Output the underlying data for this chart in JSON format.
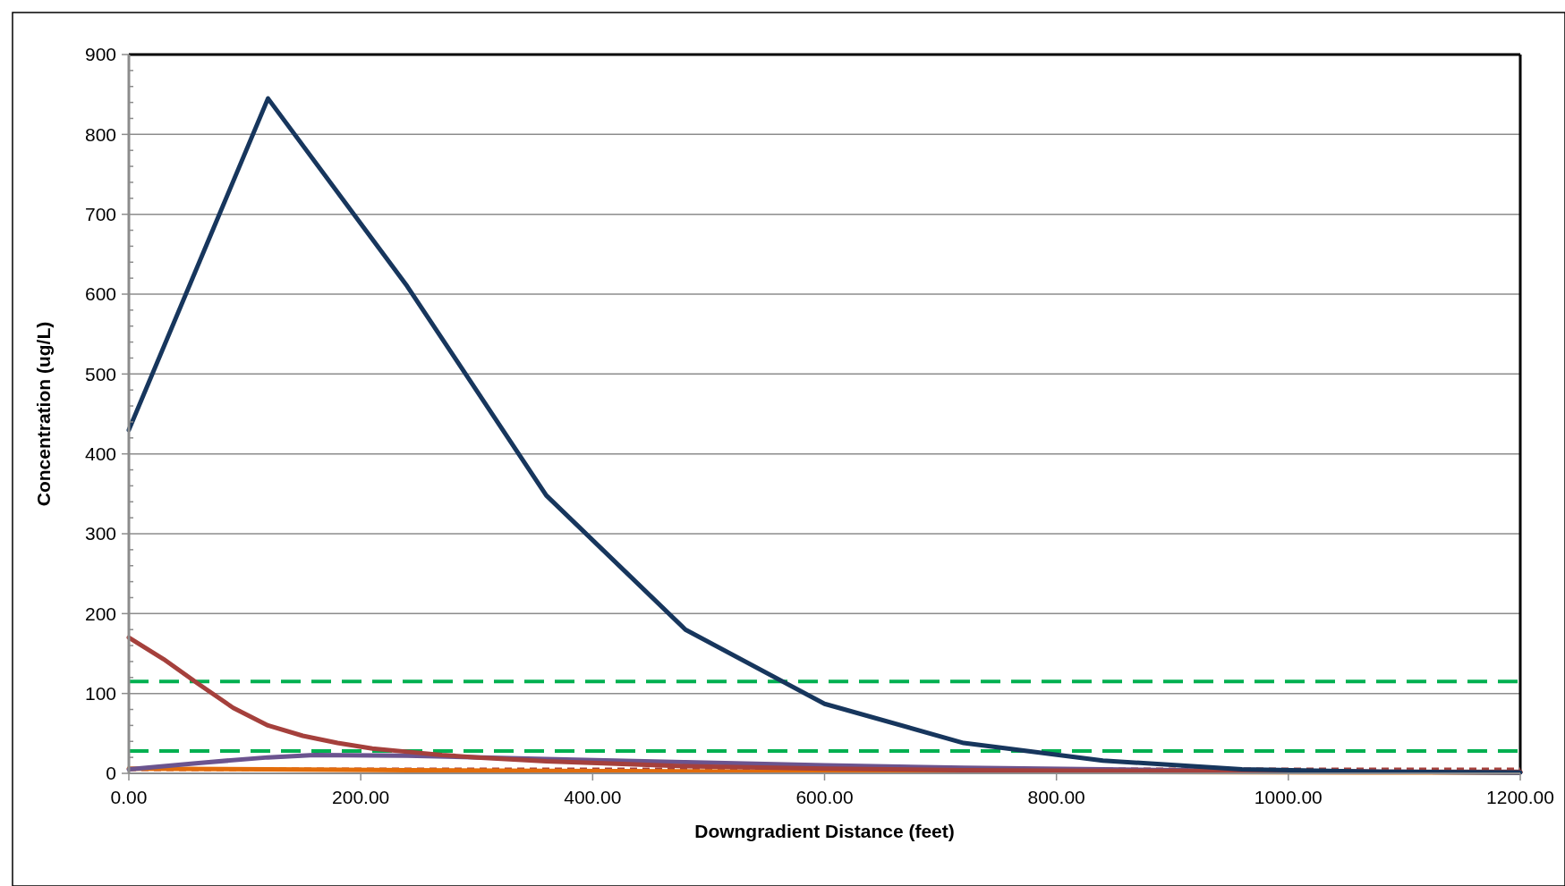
{
  "chart_data": {
    "type": "line",
    "xlabel": "Downgradient Distance (feet)",
    "ylabel": "Concentration (ug/L)",
    "xlim": [
      0,
      1200
    ],
    "ylim": [
      0,
      900
    ],
    "xticks": [
      {
        "value": 0,
        "label": "0.00"
      },
      {
        "value": 200,
        "label": "200.00"
      },
      {
        "value": 400,
        "label": "400.00"
      },
      {
        "value": 600,
        "label": "600.00"
      },
      {
        "value": 800,
        "label": "800.00"
      },
      {
        "value": 1000,
        "label": "1000.00"
      },
      {
        "value": 1200,
        "label": "1200.00"
      }
    ],
    "yticks": [
      0,
      {
        "value": 20,
        "label": null
      },
      {
        "value": 40,
        "label": null
      },
      {
        "value": 60,
        "label": null
      },
      {
        "value": 80,
        "label": null
      },
      100,
      {
        "value": 120,
        "label": null
      },
      {
        "value": 140,
        "label": null
      },
      {
        "value": 160,
        "label": null
      },
      {
        "value": 180,
        "label": null
      },
      200,
      {
        "value": 220,
        "label": null
      },
      {
        "value": 240,
        "label": null
      },
      {
        "value": 260,
        "label": null
      },
      {
        "value": 280,
        "label": null
      },
      300,
      {
        "value": 320,
        "label": null
      },
      {
        "value": 340,
        "label": null
      },
      {
        "value": 360,
        "label": null
      },
      {
        "value": 380,
        "label": null
      },
      400,
      {
        "value": 420,
        "label": null
      },
      {
        "value": 440,
        "label": null
      },
      {
        "value": 460,
        "label": null
      },
      {
        "value": 480,
        "label": null
      },
      500,
      {
        "value": 520,
        "label": null
      },
      {
        "value": 540,
        "label": null
      },
      {
        "value": 560,
        "label": null
      },
      {
        "value": 580,
        "label": null
      },
      600,
      {
        "value": 620,
        "label": null
      },
      {
        "value": 640,
        "label": null
      },
      {
        "value": 660,
        "label": null
      },
      {
        "value": 680,
        "label": null
      },
      700,
      {
        "value": 720,
        "label": null
      },
      {
        "value": 740,
        "label": null
      },
      {
        "value": 760,
        "label": null
      },
      {
        "value": 780,
        "label": null
      },
      800,
      {
        "value": 820,
        "label": null
      },
      {
        "value": 840,
        "label": null
      },
      {
        "value": 860,
        "label": null
      },
      {
        "value": 880,
        "label": null
      },
      900
    ],
    "grid": "y",
    "marker": "none",
    "line_style": "solid",
    "ref_lines": [
      {
        "axis": "y",
        "value": 115,
        "label": null,
        "color": "#00b050",
        "line_style": "dashed"
      },
      {
        "axis": "y",
        "value": 28,
        "label": null,
        "color": "#00b050",
        "line_style": "dashed"
      },
      {
        "axis": "y",
        "value": 5,
        "label": null,
        "color": "#a5403c",
        "line_style": "dotted"
      }
    ],
    "series": [
      {
        "color": "#e36c0a",
        "x": [
          0,
          120,
          240,
          360,
          600,
          1200
        ],
        "values": [
          6,
          5,
          4,
          3,
          2,
          1
        ]
      },
      {
        "color": "#6b548f",
        "x": [
          0,
          60,
          120,
          160,
          240,
          360,
          480,
          600,
          720,
          840,
          960,
          1080,
          1200
        ],
        "values": [
          5,
          13,
          20,
          23,
          22,
          18,
          14,
          10,
          7,
          5,
          3,
          2,
          1
        ]
      },
      {
        "color": "#a5403c",
        "x": [
          0,
          30,
          60,
          90,
          120,
          150,
          180,
          210,
          240,
          270,
          300,
          360,
          420,
          480,
          600,
          720,
          840,
          960,
          1080,
          1200
        ],
        "values": [
          170,
          143,
          112,
          82,
          60,
          47,
          38,
          31,
          27,
          23,
          20,
          15,
          12,
          9,
          6,
          4,
          3,
          3,
          2,
          2
        ]
      },
      {
        "color": "#17365d",
        "x": [
          0,
          120,
          240,
          360,
          480,
          600,
          720,
          840,
          960,
          1080,
          1200
        ],
        "values": [
          430,
          845,
          610,
          348,
          180,
          87,
          38,
          16,
          5,
          2,
          1
        ]
      }
    ]
  }
}
